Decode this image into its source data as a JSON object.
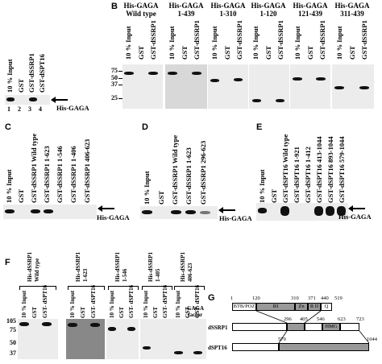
{
  "panels": {
    "A": {
      "label": "A",
      "lanes": [
        "10 % Input",
        "GST",
        "GST-dSSRP1",
        "GST-dSPT16"
      ],
      "lane_numbers": [
        "1",
        "2",
        "3",
        "4"
      ],
      "arrow": "His-GAGA"
    },
    "B": {
      "label": "B",
      "groups": [
        {
          "line1": "His-GAGA",
          "line2": "Wild type"
        },
        {
          "line1": "His-GAGA",
          "line2": "1-439"
        },
        {
          "line1": "His-GAGA",
          "line2": "1-310"
        },
        {
          "line1": "His-GAGA",
          "line2": "1-120"
        },
        {
          "line1": "His-GAGA",
          "line2": "121-439"
        },
        {
          "line1": "His-GAGA",
          "line2": "311-439"
        }
      ],
      "lanes": [
        "10 % Input",
        "GST",
        "GST-dSSRP1"
      ],
      "mw": [
        "75",
        "50",
        "37",
        "25"
      ]
    },
    "C": {
      "label": "C",
      "lanes": [
        "10 % Input",
        "GST",
        "GST-dSSRP1 Wild type",
        "GST-dSSRP1 1-623",
        "GST-dSSRP1 1-546",
        "GST-dSSRP1 1-406",
        "GST-dSSRP1 406-623"
      ],
      "arrow": "His-GAGA"
    },
    "D": {
      "label": "D",
      "lanes": [
        "10 % Input",
        "GST",
        "GST-dSSRP1 Wild type",
        "GST-dSSRP1 1-623",
        "GST-dSSRP1 296-623"
      ],
      "arrow": "His-GAGA"
    },
    "E": {
      "label": "E",
      "lanes": [
        "10 % Input",
        "GST",
        "GST-dSPT16 Wild type",
        "GST-dSPT16 1-921",
        "GST-dSPT16 1-412",
        "GST-dSPT16 413-1044",
        "GST-dSPT16 893-1044",
        "GST-dSPT16 579-1044"
      ],
      "arrow": "His-GAGA"
    },
    "F": {
      "label": "F",
      "groups": [
        {
          "line1": "His-dSSRP1",
          "line2": "Wild type"
        },
        {
          "line1": "His-dSSRP1",
          "line2": "1-623"
        },
        {
          "line1": "His-dSSRP1",
          "line2": "1-546"
        },
        {
          "line1": "His-dSSRP1",
          "line2": "1-405"
        },
        {
          "line1": "His-dSSRP1",
          "line2": "406-623"
        }
      ],
      "lanes": [
        "10 % Input",
        "GST",
        "GST- dSPT16"
      ],
      "mw": [
        "105",
        "75",
        "50",
        "37"
      ]
    },
    "G": {
      "label": "G",
      "gaga": {
        "name": "GAGA factor",
        "domains": [
          "BTB/POZ",
          "RI",
          "Zn",
          "R II",
          "Q"
        ],
        "positions": [
          "1",
          "120",
          "310",
          "371",
          "440",
          "519"
        ]
      },
      "dssrp1": {
        "name": "dSSRP1",
        "domains": [
          "HMG"
        ],
        "positions": [
          "296",
          "405",
          "546",
          "623",
          "723"
        ]
      },
      "dspt16": {
        "name": "dSPT16",
        "positions": [
          "579",
          "1044"
        ]
      }
    }
  }
}
